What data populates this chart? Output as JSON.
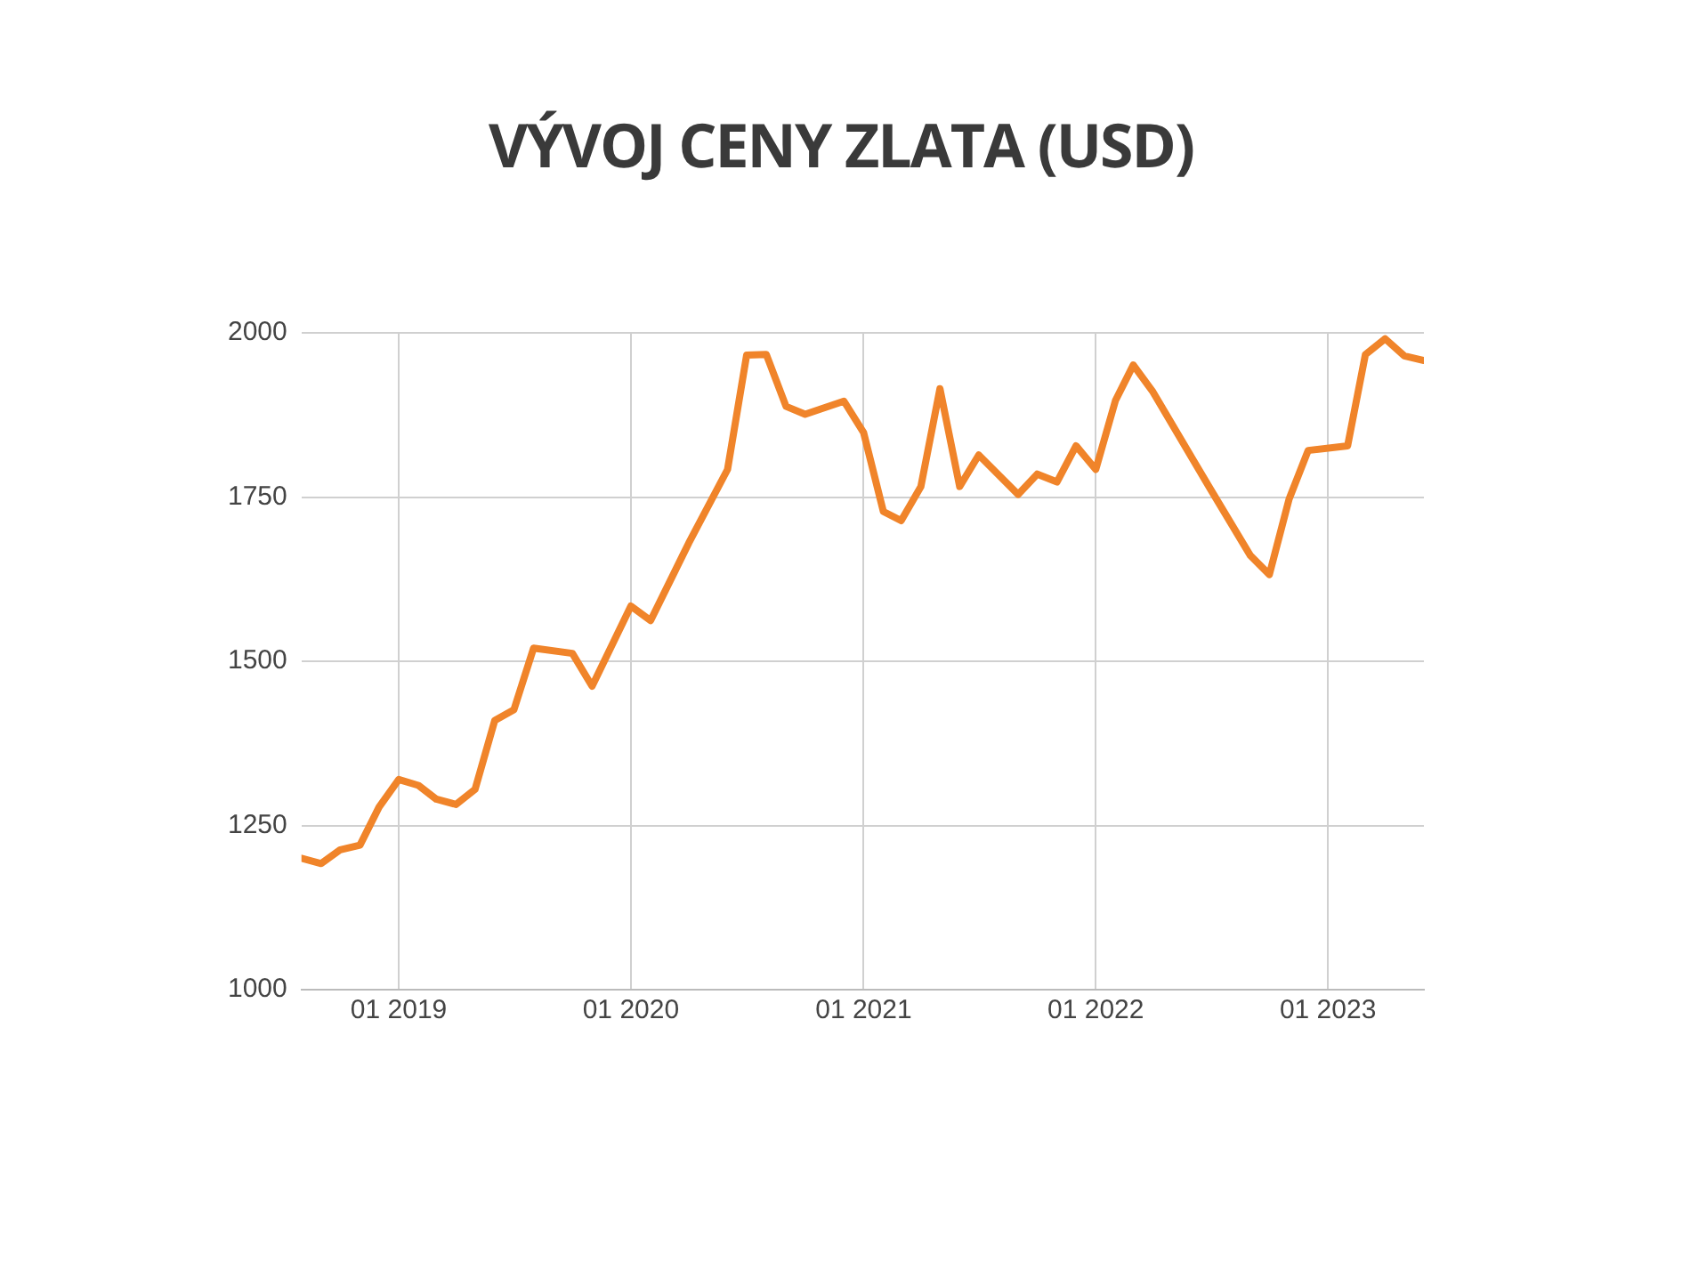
{
  "chart_data": {
    "type": "line",
    "title": "VÝVOJ CENY ZLATA (USD)",
    "x": [
      "2018-08",
      "2018-09",
      "2018-10",
      "2018-11",
      "2018-12",
      "2019-01",
      "2019-02",
      "2019-03",
      "2019-04",
      "2019-05",
      "2019-06",
      "2019-07",
      "2019-08",
      "2019-10",
      "2019-11",
      "2020-01",
      "2020-02",
      "2020-04",
      "2020-06",
      "2020-07",
      "2020-08",
      "2020-09",
      "2020-10",
      "2020-12",
      "2021-01",
      "2021-02",
      "2021-03",
      "2021-04",
      "2021-05",
      "2021-06",
      "2021-07",
      "2021-09",
      "2021-10",
      "2021-11",
      "2021-12",
      "2022-01",
      "2022-02",
      "2022-03",
      "2022-04",
      "2022-06",
      "2022-07",
      "2022-09",
      "2022-10",
      "2022-11",
      "2022-12",
      "2023-02",
      "2023-03",
      "2023-04",
      "2023-05",
      "2023-06"
    ],
    "series": [
      {
        "color": "#f0842a",
        "values": [
          1200,
          1192,
          1213,
          1220,
          1278,
          1320,
          1311,
          1290,
          1282,
          1305,
          1410,
          1426,
          1520,
          1512,
          1462,
          1584,
          1562,
          1680,
          1792,
          1966,
          1967,
          1888,
          1876,
          1896,
          1848,
          1728,
          1714,
          1766,
          1915,
          1766,
          1814,
          1754,
          1785,
          1773,
          1828,
          1792,
          1897,
          1951,
          1910,
          1810,
          1761,
          1661,
          1632,
          1747,
          1821,
          1828,
          1967,
          1991,
          1965,
          1958
        ]
      }
    ],
    "xlim": [
      "2018-08",
      "2023-06"
    ],
    "xticks": [
      {
        "value": "2019-01",
        "label": "01 2019"
      },
      {
        "value": "2020-01",
        "label": "01 2020"
      },
      {
        "value": "2021-01",
        "label": "01 2021"
      },
      {
        "value": "2022-01",
        "label": "01 2022"
      },
      {
        "value": "2023-01",
        "label": "01 2023"
      }
    ],
    "ylim": [
      1000,
      2000
    ],
    "yticks": [
      1000,
      1250,
      1500,
      1750,
      2000
    ],
    "grid": true,
    "legend": false,
    "marker": "none",
    "line_style": "solid"
  }
}
